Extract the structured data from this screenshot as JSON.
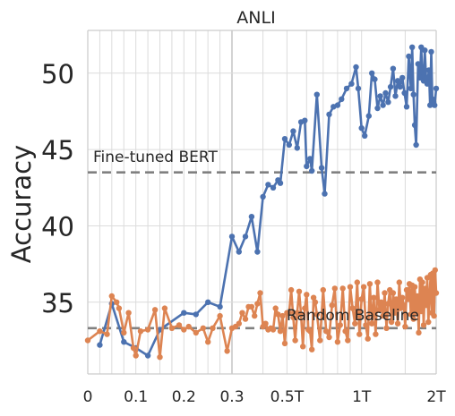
{
  "chart_data": {
    "type": "line",
    "title": "ANLI",
    "xlabel": "",
    "ylabel": "Accuracy",
    "xlim": [
      0,
      2.0
    ],
    "ylim": [
      30.3,
      52.8
    ],
    "x_scale": "piecewise: linear 0-0.3, log 0.3-2 (x in trillions of tokens)",
    "x_ticks": [
      {
        "value": 0,
        "label": "0"
      },
      {
        "value": 0.1,
        "label": "0.1"
      },
      {
        "value": 0.2,
        "label": "0.2"
      },
      {
        "value": 0.3,
        "label": "0.3"
      },
      {
        "value": 0.5,
        "label": "0.5T"
      },
      {
        "value": 1.0,
        "label": "1T"
      },
      {
        "value": 2.0,
        "label": "2T"
      }
    ],
    "y_ticks": [
      35,
      40,
      45,
      50
    ],
    "grid": true,
    "reference_lines": [
      {
        "label": "Fine-tuned BERT",
        "value": 43.5,
        "style": "dashed",
        "color": "#808080"
      },
      {
        "label": "Random Baseline",
        "value": 33.3,
        "style": "dashed",
        "color": "#808080"
      }
    ],
    "series": [
      {
        "name": "",
        "color": "#4C72B0",
        "points": [
          [
            0.025,
            32.2
          ],
          [
            0.05,
            34.9
          ],
          [
            0.075,
            32.4
          ],
          [
            0.1,
            32.0
          ],
          [
            0.125,
            31.5
          ],
          [
            0.15,
            33.2
          ],
          [
            0.2,
            34.3
          ],
          [
            0.225,
            34.2
          ],
          [
            0.25,
            35.0
          ],
          [
            0.275,
            34.7
          ],
          [
            0.3,
            39.3
          ],
          [
            0.32,
            38.3
          ],
          [
            0.34,
            39.3
          ],
          [
            0.36,
            40.6
          ],
          [
            0.38,
            38.3
          ],
          [
            0.4,
            41.9
          ],
          [
            0.42,
            42.7
          ],
          [
            0.44,
            42.5
          ],
          [
            0.46,
            43.0
          ],
          [
            0.47,
            42.8
          ],
          [
            0.49,
            45.7
          ],
          [
            0.51,
            45.3
          ],
          [
            0.53,
            46.2
          ],
          [
            0.55,
            45.1
          ],
          [
            0.57,
            46.8
          ],
          [
            0.59,
            46.9
          ],
          [
            0.6,
            43.9
          ],
          [
            0.62,
            44.4
          ],
          [
            0.63,
            43.6
          ],
          [
            0.66,
            48.6
          ],
          [
            0.69,
            43.8
          ],
          [
            0.71,
            42.1
          ],
          [
            0.74,
            47.3
          ],
          [
            0.77,
            47.8
          ],
          [
            0.8,
            47.9
          ],
          [
            0.83,
            48.3
          ],
          [
            0.87,
            49.0
          ],
          [
            0.91,
            49.3
          ],
          [
            0.95,
            50.4
          ],
          [
            0.97,
            49.0
          ],
          [
            1.0,
            46.4
          ],
          [
            1.03,
            45.9
          ],
          [
            1.07,
            47.2
          ],
          [
            1.1,
            50.0
          ],
          [
            1.13,
            49.6
          ],
          [
            1.16,
            47.7
          ],
          [
            1.19,
            48.5
          ],
          [
            1.22,
            47.9
          ],
          [
            1.25,
            48.7
          ],
          [
            1.28,
            48.1
          ],
          [
            1.31,
            49.1
          ],
          [
            1.34,
            50.3
          ],
          [
            1.37,
            48.5
          ],
          [
            1.4,
            49.5
          ],
          [
            1.43,
            49.1
          ],
          [
            1.46,
            49.7
          ],
          [
            1.49,
            48.7
          ],
          [
            1.52,
            47.8
          ],
          [
            1.55,
            51.1
          ],
          [
            1.58,
            49.0
          ],
          [
            1.6,
            51.7
          ],
          [
            1.62,
            48.6
          ],
          [
            1.64,
            46.6
          ],
          [
            1.66,
            45.3
          ],
          [
            1.69,
            50.6
          ],
          [
            1.72,
            49.7
          ],
          [
            1.74,
            51.7
          ],
          [
            1.76,
            49.7
          ],
          [
            1.78,
            49.5
          ],
          [
            1.8,
            51.5
          ],
          [
            1.82,
            49.7
          ],
          [
            1.84,
            49.3
          ],
          [
            1.87,
            50.2
          ],
          [
            1.89,
            47.9
          ],
          [
            1.91,
            51.4
          ],
          [
            1.93,
            48.3
          ],
          [
            1.95,
            48.1
          ],
          [
            1.97,
            47.9
          ],
          [
            2.0,
            49.0
          ]
        ]
      },
      {
        "name": "",
        "color": "#DD8452",
        "points": [
          [
            0.0,
            32.5
          ],
          [
            0.025,
            33.1
          ],
          [
            0.04,
            32.9
          ],
          [
            0.05,
            35.4
          ],
          [
            0.06,
            35.0
          ],
          [
            0.065,
            34.6
          ],
          [
            0.075,
            33.0
          ],
          [
            0.085,
            34.3
          ],
          [
            0.095,
            32.0
          ],
          [
            0.1,
            31.5
          ],
          [
            0.11,
            33.1
          ],
          [
            0.125,
            33.2
          ],
          [
            0.14,
            34.5
          ],
          [
            0.15,
            31.4
          ],
          [
            0.16,
            34.6
          ],
          [
            0.175,
            33.3
          ],
          [
            0.19,
            33.5
          ],
          [
            0.2,
            33.2
          ],
          [
            0.21,
            33.4
          ],
          [
            0.225,
            33.0
          ],
          [
            0.24,
            33.3
          ],
          [
            0.25,
            32.4
          ],
          [
            0.26,
            33.3
          ],
          [
            0.275,
            34.1
          ],
          [
            0.29,
            31.8
          ],
          [
            0.3,
            33.3
          ],
          [
            0.31,
            33.4
          ],
          [
            0.32,
            33.6
          ],
          [
            0.33,
            34.3
          ],
          [
            0.34,
            33.9
          ],
          [
            0.35,
            34.7
          ],
          [
            0.36,
            34.7
          ],
          [
            0.37,
            34.1
          ],
          [
            0.38,
            34.9
          ],
          [
            0.39,
            35.6
          ],
          [
            0.4,
            33.4
          ],
          [
            0.41,
            33.6
          ],
          [
            0.42,
            33.2
          ],
          [
            0.43,
            33.3
          ],
          [
            0.44,
            33.2
          ],
          [
            0.45,
            34.6
          ],
          [
            0.46,
            34.2
          ],
          [
            0.47,
            33.1
          ],
          [
            0.48,
            34.1
          ],
          [
            0.49,
            32.3
          ],
          [
            0.5,
            34.3
          ],
          [
            0.51,
            34.3
          ],
          [
            0.52,
            35.8
          ],
          [
            0.53,
            34.0
          ],
          [
            0.54,
            32.5
          ],
          [
            0.55,
            34.3
          ],
          [
            0.56,
            35.7
          ],
          [
            0.57,
            34.2
          ],
          [
            0.58,
            32.1
          ],
          [
            0.59,
            34.6
          ],
          [
            0.6,
            35.5
          ],
          [
            0.61,
            33.2
          ],
          [
            0.62,
            33.1
          ],
          [
            0.63,
            31.9
          ],
          [
            0.64,
            35.3
          ],
          [
            0.65,
            35.0
          ],
          [
            0.66,
            34.2
          ],
          [
            0.68,
            32.5
          ],
          [
            0.7,
            35.8
          ],
          [
            0.72,
            33.1
          ],
          [
            0.74,
            32.7
          ],
          [
            0.76,
            34.8
          ],
          [
            0.78,
            35.9
          ],
          [
            0.8,
            32.4
          ],
          [
            0.82,
            33.5
          ],
          [
            0.84,
            35.9
          ],
          [
            0.86,
            33.1
          ],
          [
            0.88,
            32.5
          ],
          [
            0.9,
            36.0
          ],
          [
            0.92,
            34.6
          ],
          [
            0.94,
            33.6
          ],
          [
            0.96,
            36.3
          ],
          [
            0.98,
            32.9
          ],
          [
            1.0,
            35.2
          ],
          [
            1.02,
            36.0
          ],
          [
            1.04,
            33.5
          ],
          [
            1.06,
            32.6
          ],
          [
            1.08,
            36.2
          ],
          [
            1.1,
            33.6
          ],
          [
            1.12,
            35.3
          ],
          [
            1.14,
            32.9
          ],
          [
            1.16,
            36.3
          ],
          [
            1.18,
            34.5
          ],
          [
            1.2,
            35.0
          ],
          [
            1.22,
            34.1
          ],
          [
            1.24,
            35.6
          ],
          [
            1.26,
            33.3
          ],
          [
            1.28,
            34.9
          ],
          [
            1.3,
            35.8
          ],
          [
            1.32,
            33.7
          ],
          [
            1.34,
            35.6
          ],
          [
            1.36,
            34.3
          ],
          [
            1.38,
            35.2
          ],
          [
            1.4,
            33.6
          ],
          [
            1.42,
            36.3
          ],
          [
            1.44,
            34.6
          ],
          [
            1.46,
            35.3
          ],
          [
            1.48,
            34.8
          ],
          [
            1.5,
            33.4
          ],
          [
            1.52,
            35.8
          ],
          [
            1.54,
            35.2
          ],
          [
            1.56,
            36.2
          ],
          [
            1.58,
            34.2
          ],
          [
            1.6,
            36.1
          ],
          [
            1.62,
            33.9
          ],
          [
            1.64,
            36.0
          ],
          [
            1.66,
            34.3
          ],
          [
            1.68,
            35.4
          ],
          [
            1.7,
            33.0
          ],
          [
            1.72,
            36.5
          ],
          [
            1.74,
            34.4
          ],
          [
            1.76,
            36.3
          ],
          [
            1.78,
            33.5
          ],
          [
            1.8,
            35.9
          ],
          [
            1.82,
            34.8
          ],
          [
            1.84,
            36.6
          ],
          [
            1.86,
            33.7
          ],
          [
            1.88,
            35.5
          ],
          [
            1.9,
            36.8
          ],
          [
            1.92,
            34.3
          ],
          [
            1.94,
            36.9
          ],
          [
            1.96,
            34.1
          ],
          [
            1.98,
            37.1
          ],
          [
            2.0,
            35.6
          ]
        ]
      }
    ]
  }
}
